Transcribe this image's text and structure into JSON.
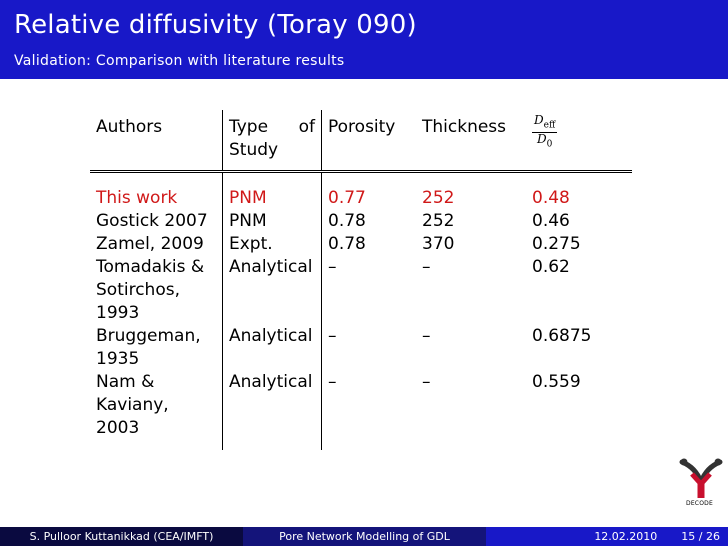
{
  "header": {
    "title": "Relative diffusivity (Toray 090)",
    "subtitle": "Validation: Comparison with literature results"
  },
  "table": {
    "headers": {
      "authors": "Authors",
      "type_word1": "Type",
      "type_word2": "of",
      "type_word3": "Study",
      "porosity": "Porosity",
      "thickness": "Thickness",
      "deff_num": "D",
      "deff_num_sub": "eff",
      "deff_den": "D",
      "deff_den_sub": "0"
    },
    "rows": [
      {
        "authors": "This work",
        "type": "PNM",
        "porosity": "0.77",
        "thickness": "252",
        "deff": "0.48"
      },
      {
        "authors": "Gostick 2007",
        "type": "PNM",
        "porosity": "0.78",
        "thickness": "252",
        "deff": "0.46"
      },
      {
        "authors": "Zamel, 2009",
        "type": "Expt.",
        "porosity": "0.78",
        "thickness": "370",
        "deff": "0.275"
      },
      {
        "authors": "Tomadakis & Sotirchos, 1993",
        "type": "Analytical",
        "porosity": "–",
        "thickness": "–",
        "deff": "0.62"
      },
      {
        "authors": "Bruggeman, 1935",
        "type": "Analytical",
        "porosity": "–",
        "thickness": "–",
        "deff": "0.6875"
      },
      {
        "authors": "Nam & Kaviany, 2003",
        "type": "Analytical",
        "porosity": "–",
        "thickness": "–",
        "deff": "0.559"
      }
    ]
  },
  "logo": {
    "text": "DECODE"
  },
  "footer": {
    "author": "S. Pulloor Kuttanikkad (CEA/IMFT)",
    "talk_title": "Pore Network Modelling of GDL",
    "date": "12.02.2010",
    "page": "15 / 26"
  },
  "colors": {
    "header_bg": "#1818c8",
    "highlight": "#d01818"
  }
}
